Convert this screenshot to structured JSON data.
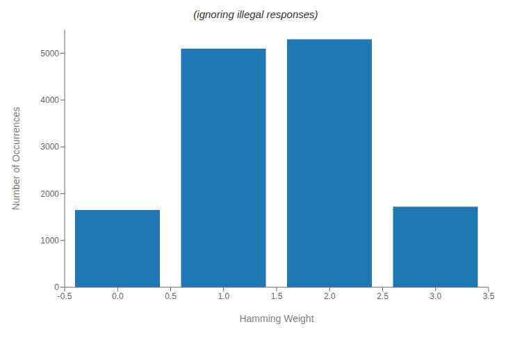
{
  "chart_data": {
    "type": "bar",
    "title": "(ignoring illegal responses)",
    "xlabel": "Hamming Weight",
    "ylabel": "Number of Occurrences",
    "x": [
      0,
      1,
      2,
      3
    ],
    "values": [
      1650,
      5100,
      5300,
      1720
    ],
    "color": "#1f77b4",
    "xlim": [
      -0.5,
      3.5
    ],
    "ylim": [
      0,
      5500
    ],
    "xticks": [
      -0.5,
      {
        "value": 0,
        "label": "0.0"
      },
      0.5,
      {
        "value": 1,
        "label": "1.0"
      },
      1.5,
      {
        "value": 2,
        "label": "2.0"
      },
      2.5,
      {
        "value": 3,
        "label": "3.0"
      },
      3.5
    ],
    "yticks": [
      0,
      1000,
      2000,
      3000,
      4000,
      5000
    ],
    "grid": false
  }
}
